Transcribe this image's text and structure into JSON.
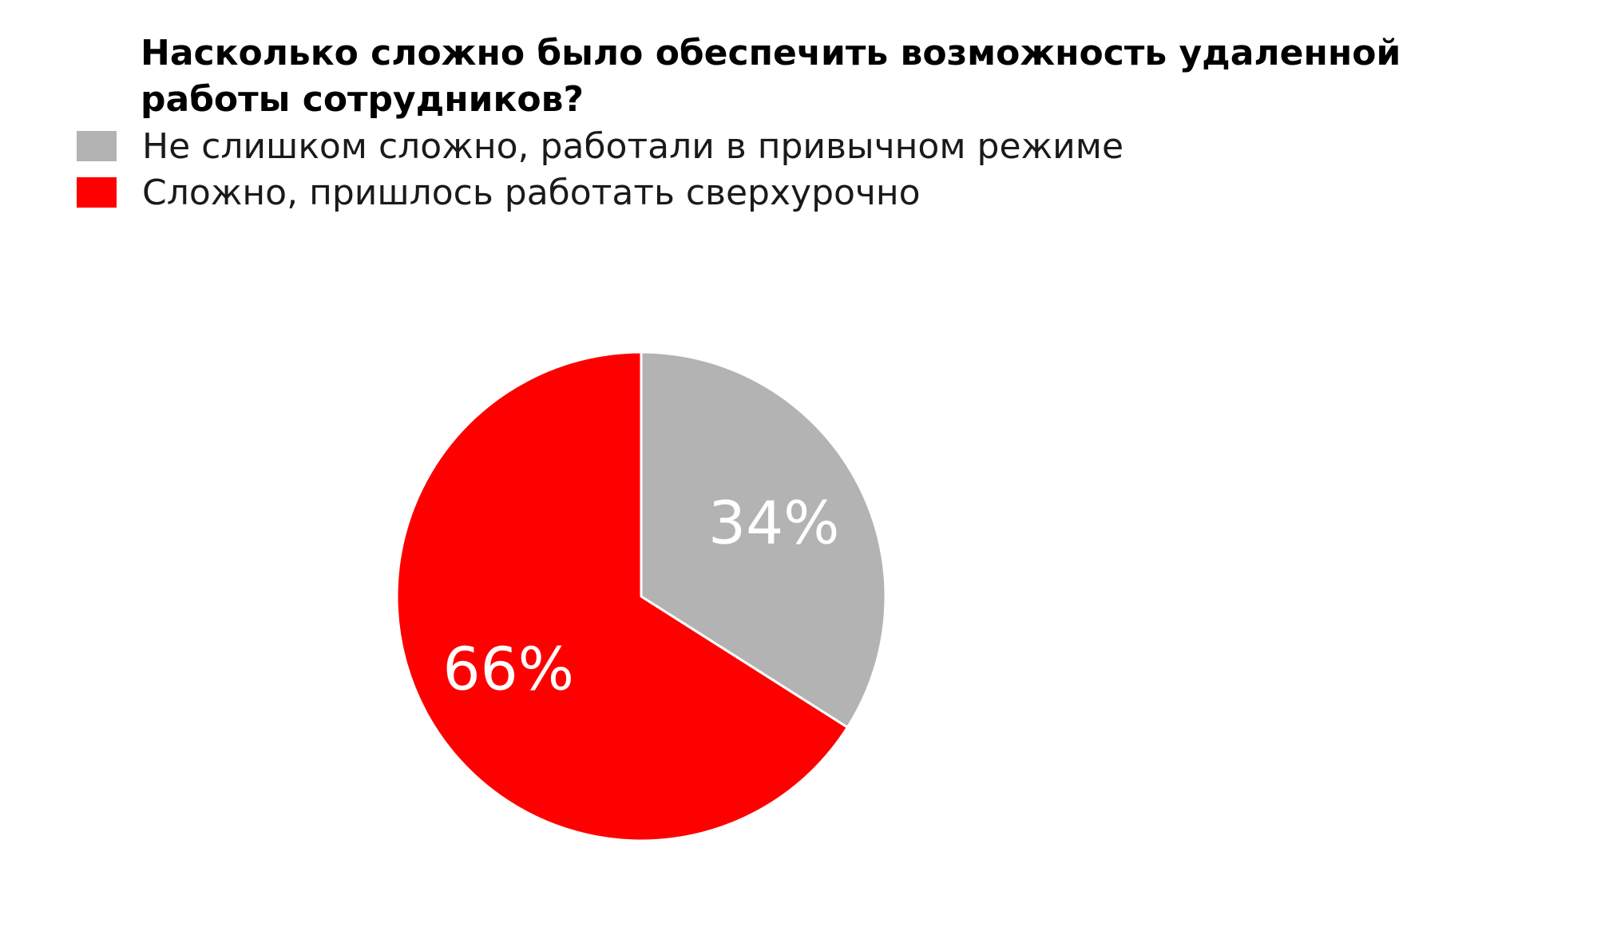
{
  "chart_data": {
    "type": "pie",
    "title": "Насколько сложно было обеспечить возможность удаленной работы сотрудников?",
    "legend_position": "top-left",
    "slices": [
      {
        "label": "Не слишком сложно, работали в привычном режиме",
        "value": 34,
        "value_label": "34%",
        "color": "#b3b3b3"
      },
      {
        "label": "Сложно, пришлось работать сверхурочно",
        "value": 66,
        "value_label": "66%",
        "color": "#ff0000"
      }
    ]
  }
}
